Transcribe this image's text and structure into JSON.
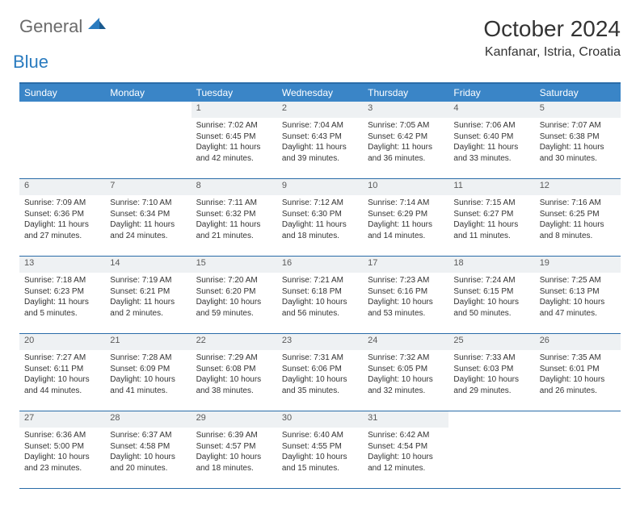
{
  "logo": {
    "text1": "General",
    "text2": "Blue"
  },
  "title": "October 2024",
  "location": "Kanfanar, Istria, Croatia",
  "colors": {
    "header_bg": "#3a85c7",
    "header_text": "#ffffff",
    "border": "#2a6ca8",
    "daynum_bg": "#eef1f3",
    "logo_gray": "#6b6b6b",
    "logo_blue": "#2a7bbf"
  },
  "day_headers": [
    "Sunday",
    "Monday",
    "Tuesday",
    "Wednesday",
    "Thursday",
    "Friday",
    "Saturday"
  ],
  "weeks": [
    [
      null,
      null,
      {
        "n": "1",
        "sr": "7:02 AM",
        "ss": "6:45 PM",
        "dl": "11 hours and 42 minutes."
      },
      {
        "n": "2",
        "sr": "7:04 AM",
        "ss": "6:43 PM",
        "dl": "11 hours and 39 minutes."
      },
      {
        "n": "3",
        "sr": "7:05 AM",
        "ss": "6:42 PM",
        "dl": "11 hours and 36 minutes."
      },
      {
        "n": "4",
        "sr": "7:06 AM",
        "ss": "6:40 PM",
        "dl": "11 hours and 33 minutes."
      },
      {
        "n": "5",
        "sr": "7:07 AM",
        "ss": "6:38 PM",
        "dl": "11 hours and 30 minutes."
      }
    ],
    [
      {
        "n": "6",
        "sr": "7:09 AM",
        "ss": "6:36 PM",
        "dl": "11 hours and 27 minutes."
      },
      {
        "n": "7",
        "sr": "7:10 AM",
        "ss": "6:34 PM",
        "dl": "11 hours and 24 minutes."
      },
      {
        "n": "8",
        "sr": "7:11 AM",
        "ss": "6:32 PM",
        "dl": "11 hours and 21 minutes."
      },
      {
        "n": "9",
        "sr": "7:12 AM",
        "ss": "6:30 PM",
        "dl": "11 hours and 18 minutes."
      },
      {
        "n": "10",
        "sr": "7:14 AM",
        "ss": "6:29 PM",
        "dl": "11 hours and 14 minutes."
      },
      {
        "n": "11",
        "sr": "7:15 AM",
        "ss": "6:27 PM",
        "dl": "11 hours and 11 minutes."
      },
      {
        "n": "12",
        "sr": "7:16 AM",
        "ss": "6:25 PM",
        "dl": "11 hours and 8 minutes."
      }
    ],
    [
      {
        "n": "13",
        "sr": "7:18 AM",
        "ss": "6:23 PM",
        "dl": "11 hours and 5 minutes."
      },
      {
        "n": "14",
        "sr": "7:19 AM",
        "ss": "6:21 PM",
        "dl": "11 hours and 2 minutes."
      },
      {
        "n": "15",
        "sr": "7:20 AM",
        "ss": "6:20 PM",
        "dl": "10 hours and 59 minutes."
      },
      {
        "n": "16",
        "sr": "7:21 AM",
        "ss": "6:18 PM",
        "dl": "10 hours and 56 minutes."
      },
      {
        "n": "17",
        "sr": "7:23 AM",
        "ss": "6:16 PM",
        "dl": "10 hours and 53 minutes."
      },
      {
        "n": "18",
        "sr": "7:24 AM",
        "ss": "6:15 PM",
        "dl": "10 hours and 50 minutes."
      },
      {
        "n": "19",
        "sr": "7:25 AM",
        "ss": "6:13 PM",
        "dl": "10 hours and 47 minutes."
      }
    ],
    [
      {
        "n": "20",
        "sr": "7:27 AM",
        "ss": "6:11 PM",
        "dl": "10 hours and 44 minutes."
      },
      {
        "n": "21",
        "sr": "7:28 AM",
        "ss": "6:09 PM",
        "dl": "10 hours and 41 minutes."
      },
      {
        "n": "22",
        "sr": "7:29 AM",
        "ss": "6:08 PM",
        "dl": "10 hours and 38 minutes."
      },
      {
        "n": "23",
        "sr": "7:31 AM",
        "ss": "6:06 PM",
        "dl": "10 hours and 35 minutes."
      },
      {
        "n": "24",
        "sr": "7:32 AM",
        "ss": "6:05 PM",
        "dl": "10 hours and 32 minutes."
      },
      {
        "n": "25",
        "sr": "7:33 AM",
        "ss": "6:03 PM",
        "dl": "10 hours and 29 minutes."
      },
      {
        "n": "26",
        "sr": "7:35 AM",
        "ss": "6:01 PM",
        "dl": "10 hours and 26 minutes."
      }
    ],
    [
      {
        "n": "27",
        "sr": "6:36 AM",
        "ss": "5:00 PM",
        "dl": "10 hours and 23 minutes."
      },
      {
        "n": "28",
        "sr": "6:37 AM",
        "ss": "4:58 PM",
        "dl": "10 hours and 20 minutes."
      },
      {
        "n": "29",
        "sr": "6:39 AM",
        "ss": "4:57 PM",
        "dl": "10 hours and 18 minutes."
      },
      {
        "n": "30",
        "sr": "6:40 AM",
        "ss": "4:55 PM",
        "dl": "10 hours and 15 minutes."
      },
      {
        "n": "31",
        "sr": "6:42 AM",
        "ss": "4:54 PM",
        "dl": "10 hours and 12 minutes."
      },
      null,
      null
    ]
  ],
  "labels": {
    "sunrise": "Sunrise:",
    "sunset": "Sunset:",
    "daylight": "Daylight:"
  }
}
